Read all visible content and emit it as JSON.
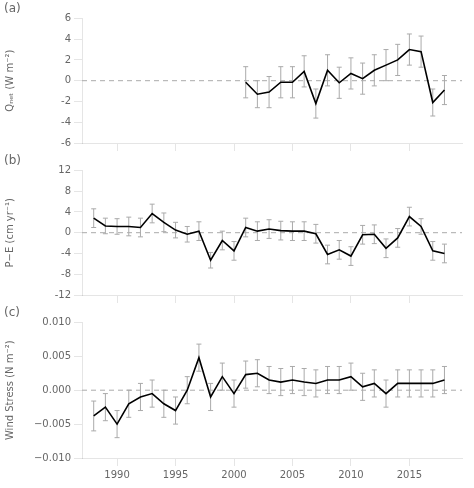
{
  "chart_data": [
    {
      "type": "line",
      "title": "(a)",
      "ylabel": "Qₙₑₜ (W m⁻²)",
      "x": [
        2001,
        2002,
        2003,
        2004,
        2005,
        2006,
        2007,
        2008,
        2009,
        2010,
        2011,
        2012,
        2013,
        2014,
        2015,
        2016,
        2017,
        2018
      ],
      "values": [
        -0.15,
        -1.3,
        -1.1,
        -0.15,
        -0.15,
        0.9,
        -2.2,
        1.0,
        -0.2,
        0.7,
        0.2,
        1.0,
        1.5,
        2.0,
        3.0,
        2.8,
        -2.1,
        -0.9
      ],
      "errors": [
        1.5,
        1.3,
        1.5,
        1.5,
        1.5,
        1.5,
        1.4,
        1.5,
        1.5,
        1.5,
        1.5,
        1.5,
        1.5,
        1.5,
        1.5,
        1.5,
        1.3,
        1.4
      ],
      "color": "#000000",
      "hline": 0,
      "xlim": [
        1987.0,
        2019.5
      ],
      "xticks": [
        1990,
        1995,
        2000,
        2005,
        2010,
        2015
      ],
      "ylim": [
        -6,
        6
      ],
      "yticks": [
        -6,
        -4,
        -2,
        0,
        2,
        4,
        6
      ],
      "grid": false,
      "tick_labels": "y"
    },
    {
      "type": "line",
      "title": "(b)",
      "ylabel": "P−E (cm yr⁻¹)",
      "x": [
        1988,
        1989,
        1990,
        1991,
        1992,
        1993,
        1994,
        1995,
        1996,
        1997,
        1998,
        1999,
        2000,
        2001,
        2002,
        2003,
        2004,
        2005,
        2006,
        2007,
        2008,
        2009,
        2010,
        2011,
        2012,
        2013,
        2014,
        2015,
        2016,
        2017,
        2018
      ],
      "values": [
        2.8,
        1.3,
        1.2,
        1.2,
        1.0,
        3.7,
        2.0,
        0.5,
        -0.3,
        0.3,
        -5.3,
        -1.5,
        -3.5,
        1.0,
        0.3,
        0.7,
        0.4,
        0.3,
        0.3,
        -0.2,
        -4.2,
        -3.3,
        -4.5,
        -0.4,
        -0.3,
        -3.0,
        -1.0,
        3.1,
        1.2,
        -3.5,
        -4.0
      ],
      "errors": [
        1.8,
        1.5,
        1.5,
        1.8,
        1.8,
        1.8,
        1.8,
        1.5,
        1.5,
        1.8,
        1.5,
        1.8,
        1.8,
        1.8,
        1.8,
        1.8,
        1.8,
        1.8,
        1.8,
        1.8,
        1.8,
        1.8,
        1.8,
        1.8,
        1.8,
        1.8,
        1.8,
        1.8,
        1.5,
        1.8,
        1.8
      ],
      "color": "#000000",
      "hline": 0,
      "xlim": [
        1987.0,
        2019.5
      ],
      "xticks": [
        1990,
        1995,
        2000,
        2005,
        2010,
        2015
      ],
      "ylim": [
        -12,
        12
      ],
      "yticks": [
        -12,
        -8,
        -4,
        0,
        4,
        8,
        12
      ],
      "grid": false,
      "tick_labels": "y"
    },
    {
      "type": "line",
      "title": "(c)",
      "ylabel": "Wind Stress (N m⁻²)",
      "x": [
        1988,
        1989,
        1990,
        1991,
        1992,
        1993,
        1994,
        1995,
        1996,
        1997,
        1998,
        1999,
        2000,
        2001,
        2002,
        2003,
        2004,
        2005,
        2006,
        2007,
        2008,
        2009,
        2010,
        2011,
        2012,
        2013,
        2014,
        2015,
        2016,
        2017,
        2018
      ],
      "values": [
        -0.0038,
        -0.0025,
        -0.005,
        -0.002,
        -0.001,
        -0.0005,
        -0.002,
        -0.003,
        0.0,
        0.0048,
        -0.001,
        0.002,
        -0.0005,
        0.0023,
        0.0025,
        0.0015,
        0.0012,
        0.0015,
        0.0012,
        0.001,
        0.0015,
        0.0015,
        0.002,
        0.0005,
        0.001,
        -0.0005,
        0.001,
        0.001,
        0.001,
        0.001,
        0.0015
      ],
      "errors": [
        0.0022,
        0.002,
        0.002,
        0.002,
        0.002,
        0.002,
        0.002,
        0.002,
        0.002,
        0.002,
        0.002,
        0.002,
        0.002,
        0.002,
        0.002,
        0.002,
        0.002,
        0.002,
        0.002,
        0.002,
        0.002,
        0.002,
        0.002,
        0.002,
        0.002,
        0.002,
        0.002,
        0.002,
        0.002,
        0.002,
        0.002
      ],
      "color": "#000000",
      "hline": 0,
      "xlim": [
        1987.0,
        2019.5
      ],
      "xticks": [
        1990,
        1995,
        2000,
        2005,
        2010,
        2015
      ],
      "ylim": [
        -0.01,
        0.01
      ],
      "yticks": [
        {
          "value": -0.01,
          "label": "−0.010"
        },
        {
          "value": -0.005,
          "label": "−0.005"
        },
        {
          "value": 0,
          "label": "0.000"
        },
        {
          "value": 0.005,
          "label": "0.005"
        },
        {
          "value": 0.01,
          "label": "0.010"
        }
      ],
      "grid": false
    }
  ]
}
